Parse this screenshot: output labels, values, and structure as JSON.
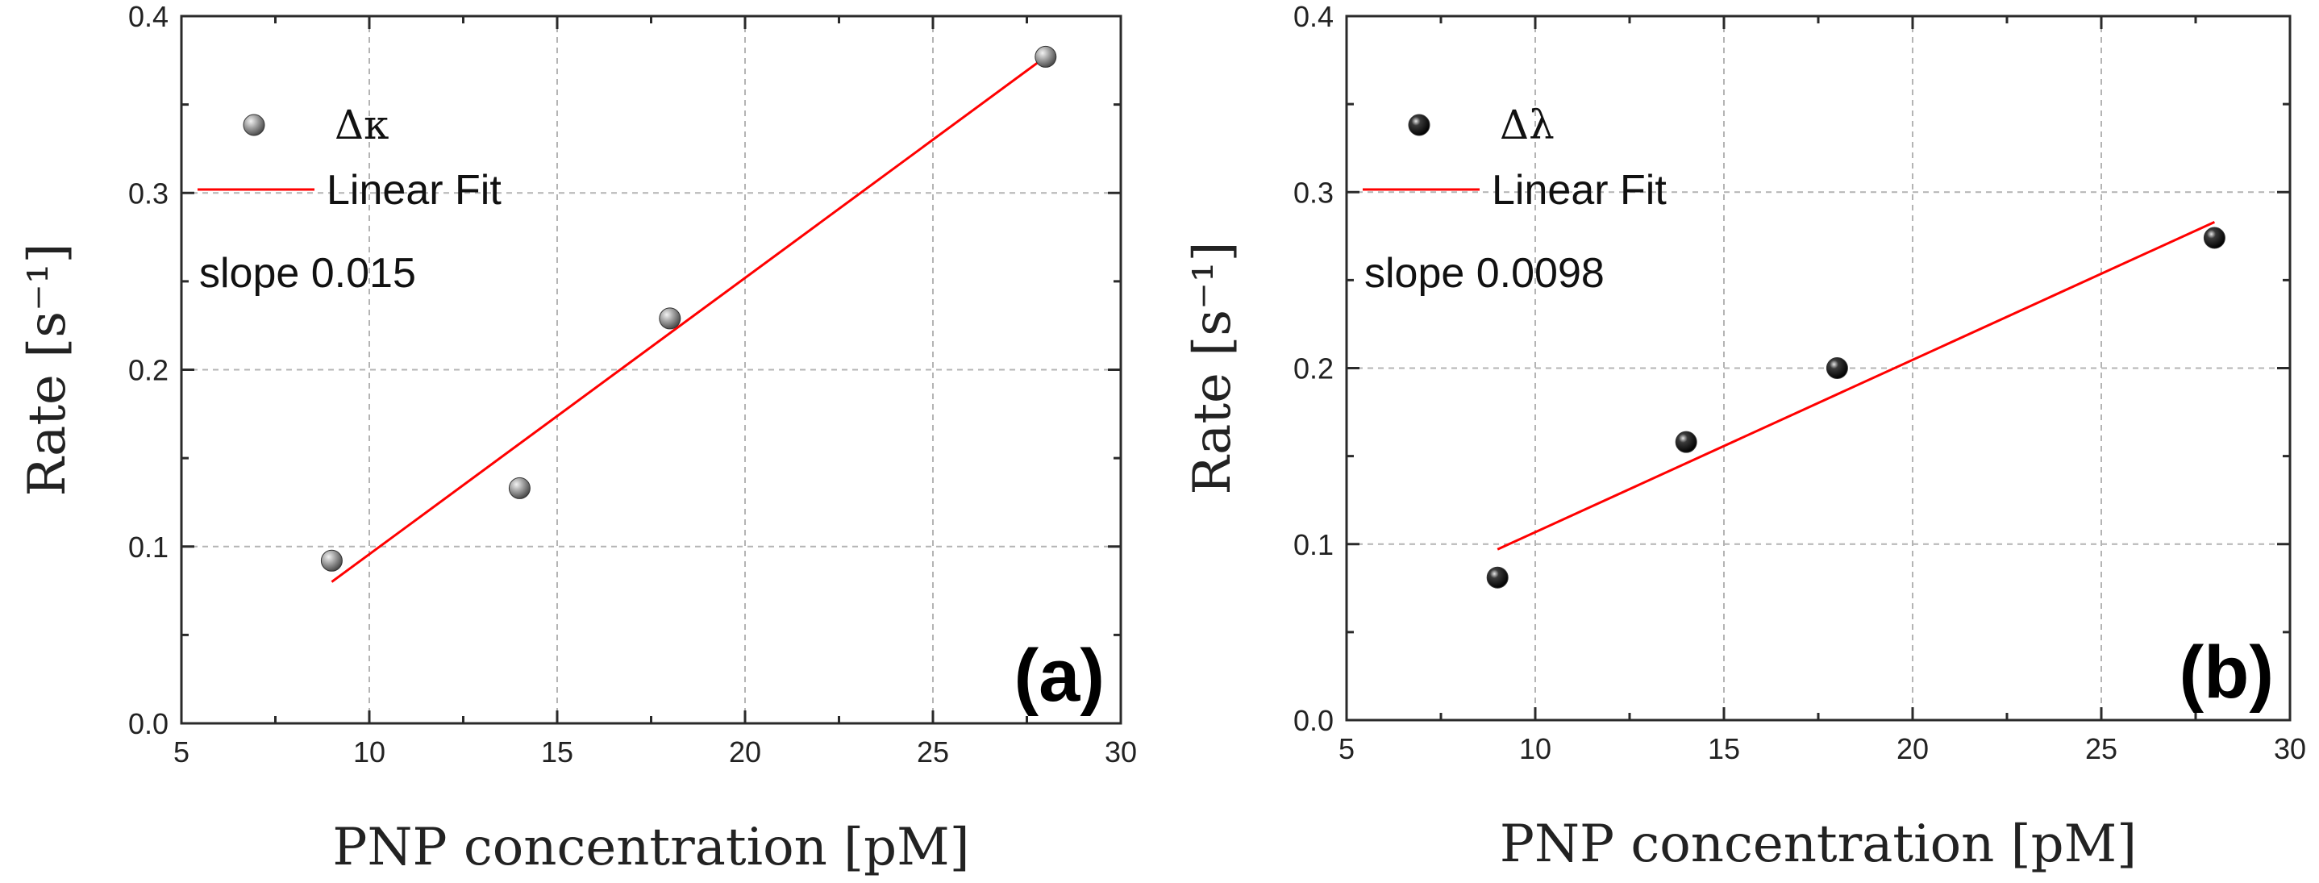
{
  "chart_data": [
    {
      "type": "scatter",
      "panel_label": "(a)",
      "xlabel": "PNP concentration [pM]",
      "ylabel": "Rate [s⁻¹]",
      "xlim": [
        5,
        30
      ],
      "ylim": [
        0.0,
        0.4
      ],
      "xticks": [
        5,
        10,
        15,
        20,
        25,
        30
      ],
      "xtick_labels": [
        "5",
        "10",
        "15",
        "20",
        "25",
        "30"
      ],
      "yticks": [
        0.0,
        0.1,
        0.2,
        0.3,
        0.4
      ],
      "ytick_labels": [
        "0.0",
        "0.1",
        "0.2",
        "0.3",
        "0.4"
      ],
      "grid": true,
      "legend_position": "top-left",
      "series": [
        {
          "name": "Δκ",
          "kind": "points",
          "color": "#9a9a9a",
          "x": [
            9,
            14,
            18,
            28
          ],
          "y": [
            0.092,
            0.133,
            0.229,
            0.377
          ]
        },
        {
          "name": "Linear Fit",
          "kind": "line",
          "color": "#ff0000",
          "x": [
            9,
            28
          ],
          "y": [
            0.08,
            0.377
          ]
        }
      ],
      "annotation": "slope 0.015"
    },
    {
      "type": "scatter",
      "panel_label": "(b)",
      "xlabel": "PNP concentration [pM]",
      "ylabel": "Rate [s⁻¹]",
      "xlim": [
        5,
        30
      ],
      "ylim": [
        0.0,
        0.4
      ],
      "xticks": [
        5,
        10,
        15,
        20,
        25,
        30
      ],
      "xtick_labels": [
        "5",
        "10",
        "15",
        "20",
        "25",
        "30"
      ],
      "yticks": [
        0.0,
        0.1,
        0.2,
        0.3,
        0.4
      ],
      "ytick_labels": [
        "0.0",
        "0.1",
        "0.2",
        "0.3",
        "0.4"
      ],
      "grid": true,
      "legend_position": "top-left",
      "series": [
        {
          "name": "Δλ",
          "kind": "points",
          "color": "#111111",
          "x": [
            9,
            14,
            18,
            28
          ],
          "y": [
            0.081,
            0.158,
            0.2,
            0.274
          ]
        },
        {
          "name": "Linear Fit",
          "kind": "line",
          "color": "#ff0000",
          "x": [
            9,
            28
          ],
          "y": [
            0.097,
            0.283
          ]
        }
      ],
      "annotation": "slope 0.0098"
    }
  ]
}
